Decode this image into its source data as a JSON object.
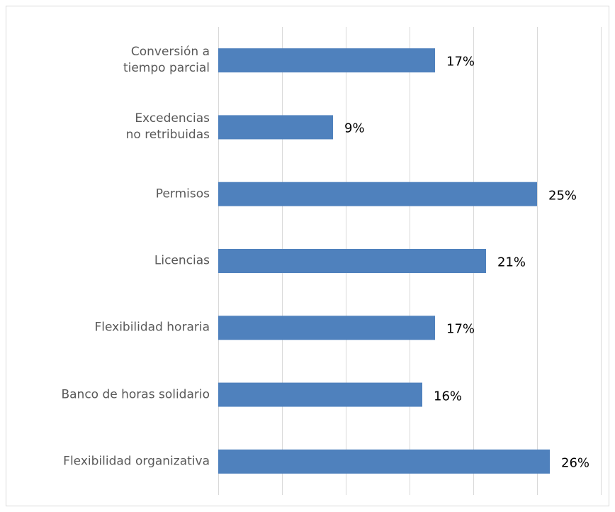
{
  "chart_data": {
    "type": "hbar",
    "categories": [
      "Conversión a\ntiempo parcial",
      "Excedencias\nno retribuidas",
      "Permisos",
      "Licencias",
      "Flexibilidad horaria",
      "Banco de horas solidario",
      "Flexibilidad organizativa"
    ],
    "values": [
      17,
      9,
      25,
      21,
      17,
      16,
      26
    ],
    "value_labels": [
      "17%",
      "9%",
      "25%",
      "21%",
      "17%",
      "16%",
      "26%"
    ],
    "color": "#4f81bd",
    "xlim": [
      0,
      30
    ],
    "xticks": [
      0,
      5,
      10,
      15,
      20,
      25,
      30
    ],
    "grid": true
  }
}
